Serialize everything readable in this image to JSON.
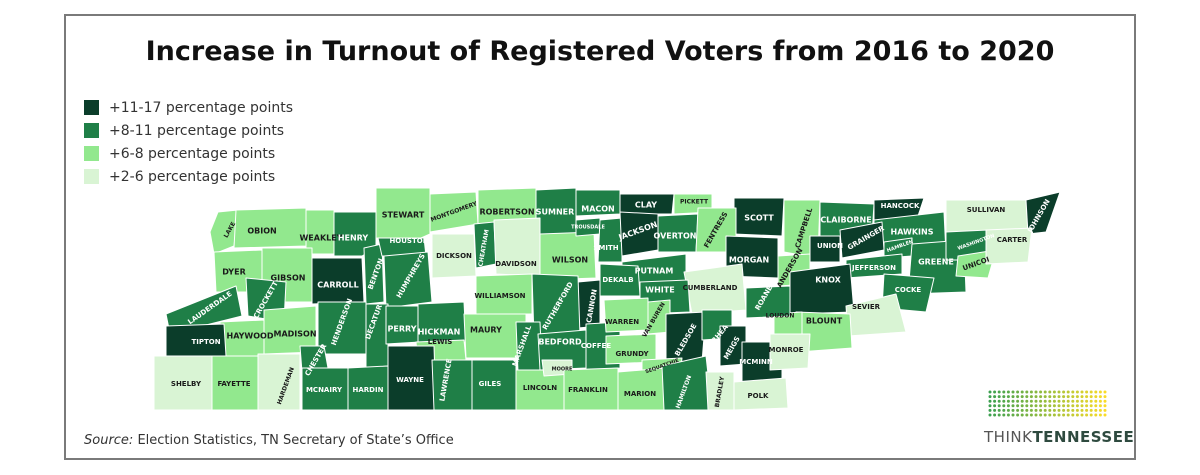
{
  "title": "Increase in Turnout of Registered Voters from 2016 to 2020",
  "legend": [
    {
      "label": "+11-17 percentage points",
      "color": "#0b3d2a",
      "category": "c1"
    },
    {
      "label": "+8-11 percentage points",
      "color": "#1f7f47",
      "category": "c2"
    },
    {
      "label": "+6-8 percentage points",
      "color": "#92e88e",
      "category": "c3"
    },
    {
      "label": "+2-6 percentage points",
      "color": "#d9f4d4",
      "category": "c4"
    }
  ],
  "source": {
    "prefix": "Source:",
    "text": " Election Statistics, TN Secretary of State’s Office"
  },
  "logo": {
    "think": "THINK",
    "tennessee": "TENNESSEE"
  },
  "counties": [
    {
      "name": "LAKE",
      "category": "c3"
    },
    {
      "name": "OBION",
      "category": "c3"
    },
    {
      "name": "WEAKLEY",
      "category": "c3"
    },
    {
      "name": "HENRY",
      "category": "c2"
    },
    {
      "name": "STEWART",
      "category": "c3"
    },
    {
      "name": "MONTGOMERY",
      "category": "c3"
    },
    {
      "name": "ROBERTSON",
      "category": "c3"
    },
    {
      "name": "SUMNER",
      "category": "c2"
    },
    {
      "name": "MACON",
      "category": "c2"
    },
    {
      "name": "CLAY",
      "category": "c1"
    },
    {
      "name": "PICKETT",
      "category": "c3"
    },
    {
      "name": "SCOTT",
      "category": "c1"
    },
    {
      "name": "CAMPBELL",
      "category": "c3"
    },
    {
      "name": "CLAIBORNE",
      "category": "c2"
    },
    {
      "name": "HANCOCK",
      "category": "c1"
    },
    {
      "name": "HAWKINS",
      "category": "c2"
    },
    {
      "name": "SULLIVAN",
      "category": "c4"
    },
    {
      "name": "JOHNSON",
      "category": "c1"
    },
    {
      "name": "DYER",
      "category": "c3"
    },
    {
      "name": "GIBSON",
      "category": "c3"
    },
    {
      "name": "CARROLL",
      "category": "c1"
    },
    {
      "name": "BENTON",
      "category": "c2"
    },
    {
      "name": "HOUSTON",
      "category": "c2"
    },
    {
      "name": "HUMPHREYS",
      "category": "c2"
    },
    {
      "name": "DICKSON",
      "category": "c4"
    },
    {
      "name": "CHEATHAM",
      "category": "c2"
    },
    {
      "name": "DAVIDSON",
      "category": "c4"
    },
    {
      "name": "WILSON",
      "category": "c3"
    },
    {
      "name": "TROUSDALE",
      "category": "c2"
    },
    {
      "name": "SMITH",
      "category": "c2"
    },
    {
      "name": "JACKSON",
      "category": "c1"
    },
    {
      "name": "OVERTON",
      "category": "c2"
    },
    {
      "name": "FENTRESS",
      "category": "c3"
    },
    {
      "name": "PUTNAM",
      "category": "c2"
    },
    {
      "name": "MORGAN",
      "category": "c1"
    },
    {
      "name": "ANDERSON",
      "category": "c3"
    },
    {
      "name": "UNION",
      "category": "c1"
    },
    {
      "name": "GRAINGER",
      "category": "c1"
    },
    {
      "name": "HAMBLEN",
      "category": "c2"
    },
    {
      "name": "GREENE",
      "category": "c2"
    },
    {
      "name": "WASHINGTON",
      "category": "c2"
    },
    {
      "name": "UNICOI",
      "category": "c3"
    },
    {
      "name": "CARTER",
      "category": "c4"
    },
    {
      "name": "JEFFERSON",
      "category": "c2"
    },
    {
      "name": "KNOX",
      "category": "c1"
    },
    {
      "name": "COCKE",
      "category": "c2"
    },
    {
      "name": "SEVIER",
      "category": "c4"
    },
    {
      "name": "BLOUNT",
      "category": "c3"
    },
    {
      "name": "LOUDON",
      "category": "c3"
    },
    {
      "name": "ROANE",
      "category": "c2"
    },
    {
      "name": "CUMBERLAND",
      "category": "c4"
    },
    {
      "name": "WHITE",
      "category": "c2"
    },
    {
      "name": "DEKALB",
      "category": "c2"
    },
    {
      "name": "CANNON",
      "category": "c1"
    },
    {
      "name": "RUTHERFORD",
      "category": "c2"
    },
    {
      "name": "WILLIAMSON",
      "category": "c3"
    },
    {
      "name": "LAUDERDALE",
      "category": "c2"
    },
    {
      "name": "CROCKETT",
      "category": "c2"
    },
    {
      "name": "HAYWOOD",
      "category": "c3"
    },
    {
      "name": "MADISON",
      "category": "c3"
    },
    {
      "name": "HENDERSON",
      "category": "c2"
    },
    {
      "name": "DECATUR",
      "category": "c2"
    },
    {
      "name": "PERRY",
      "category": "c2"
    },
    {
      "name": "HICKMAN",
      "category": "c2"
    },
    {
      "name": "LEWIS",
      "category": "c3"
    },
    {
      "name": "MAURY",
      "category": "c3"
    },
    {
      "name": "MARSHALL",
      "category": "c2"
    },
    {
      "name": "BEDFORD",
      "category": "c2"
    },
    {
      "name": "COFFEE",
      "category": "c2"
    },
    {
      "name": "WARREN",
      "category": "c3"
    },
    {
      "name": "VAN BUREN",
      "category": "c3"
    },
    {
      "name": "BLEDSOE",
      "category": "c1"
    },
    {
      "name": "RHEA",
      "category": "c2"
    },
    {
      "name": "MEIGS",
      "category": "c1"
    },
    {
      "name": "MCMINN",
      "category": "c1"
    },
    {
      "name": "MONROE",
      "category": "c4"
    },
    {
      "name": "TIPTON",
      "category": "c1"
    },
    {
      "name": "SHELBY",
      "category": "c4"
    },
    {
      "name": "FAYETTE",
      "category": "c3"
    },
    {
      "name": "HARDEMAN",
      "category": "c4"
    },
    {
      "name": "CHESTER",
      "category": "c2"
    },
    {
      "name": "MCNAIRY",
      "category": "c2"
    },
    {
      "name": "HARDIN",
      "category": "c2"
    },
    {
      "name": "WAYNE",
      "category": "c1"
    },
    {
      "name": "LAWRENCE",
      "category": "c2"
    },
    {
      "name": "GILES",
      "category": "c2"
    },
    {
      "name": "LINCOLN",
      "category": "c3"
    },
    {
      "name": "MOORE",
      "category": "c4"
    },
    {
      "name": "FRANKLIN",
      "category": "c3"
    },
    {
      "name": "GRUNDY",
      "category": "c3"
    },
    {
      "name": "SEQUATCHIE",
      "category": "c3"
    },
    {
      "name": "MARION",
      "category": "c3"
    },
    {
      "name": "HAMILTON",
      "category": "c2"
    },
    {
      "name": "BRADLEY",
      "category": "c4"
    },
    {
      "name": "POLK",
      "category": "c4"
    }
  ]
}
